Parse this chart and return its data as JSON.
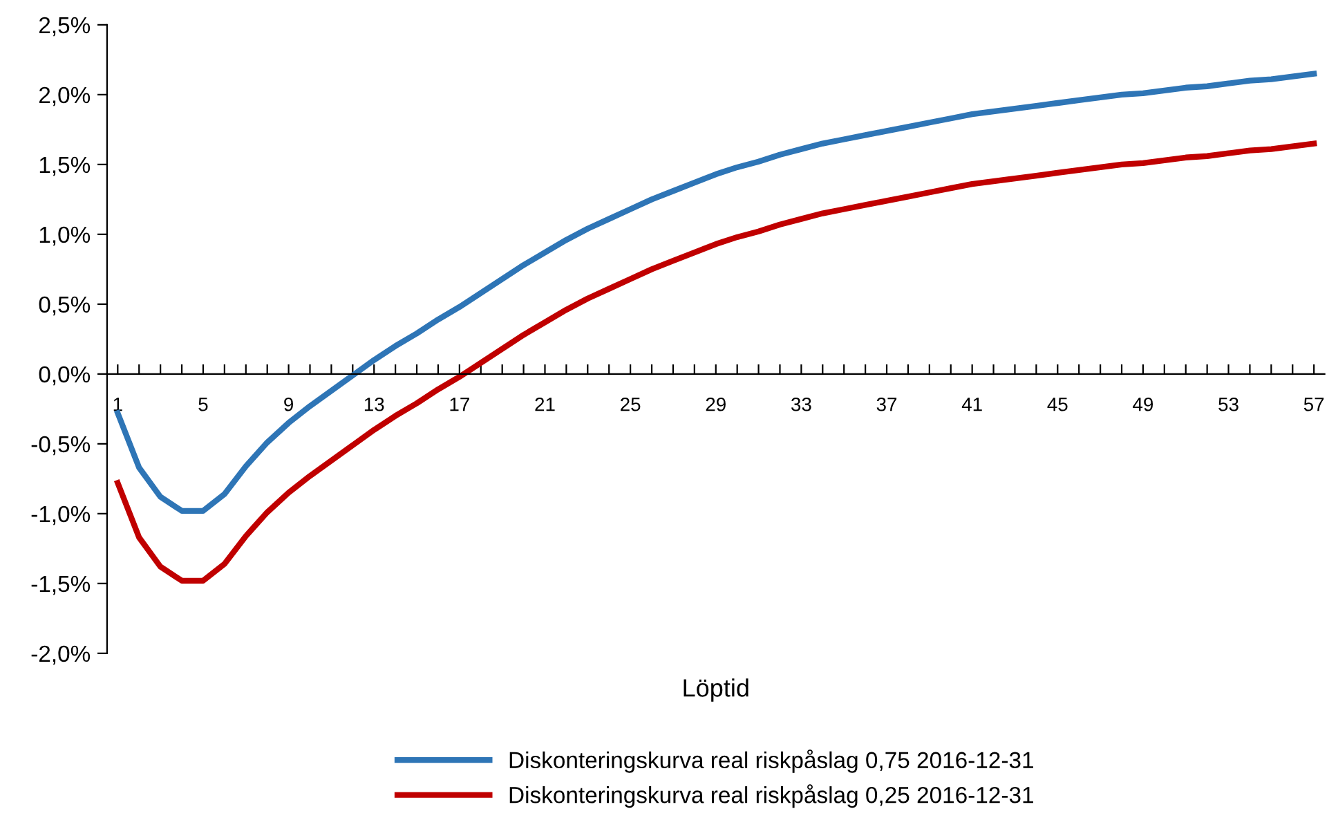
{
  "chart_data": {
    "type": "line",
    "xlabel": "Löptid",
    "categories": [
      "1",
      null,
      null,
      null,
      "5",
      null,
      null,
      null,
      "9",
      null,
      null,
      null,
      "13",
      null,
      null,
      null,
      "17",
      null,
      null,
      null,
      "21",
      null,
      null,
      null,
      "25",
      null,
      null,
      null,
      "29",
      null,
      null,
      null,
      "33",
      null,
      null,
      null,
      "37",
      null,
      null,
      null,
      "41",
      null,
      null,
      null,
      "45",
      null,
      null,
      null,
      "49",
      null,
      null,
      null,
      "53",
      null,
      null,
      null,
      "57"
    ],
    "series": [
      {
        "name": "Diskonteringskurva real riskpåslag 0,75 2016-12-31",
        "color": "#2e75b6",
        "values": [
          -0.28,
          -0.67,
          -0.88,
          -0.98,
          -0.98,
          -0.86,
          -0.66,
          -0.49,
          -0.35,
          -0.23,
          -0.12,
          -0.01,
          0.1,
          0.2,
          0.29,
          0.39,
          0.48,
          0.58,
          0.68,
          0.78,
          0.87,
          0.96,
          1.04,
          1.11,
          1.18,
          1.25,
          1.31,
          1.37,
          1.43,
          1.48,
          1.52,
          1.57,
          1.61,
          1.65,
          1.68,
          1.71,
          1.74,
          1.77,
          1.8,
          1.83,
          1.86,
          1.88,
          1.9,
          1.92,
          1.94,
          1.96,
          1.98,
          2.0,
          2.01,
          2.03,
          2.05,
          2.06,
          2.08,
          2.1,
          2.11,
          2.13,
          2.15
        ]
      },
      {
        "name": "Diskonteringskurva real riskpåslag 0,25 2016-12-31",
        "color": "#c00000",
        "values": [
          -0.78,
          -1.17,
          -1.38,
          -1.48,
          -1.48,
          -1.36,
          -1.16,
          -0.99,
          -0.85,
          -0.73,
          -0.62,
          -0.51,
          -0.4,
          -0.3,
          -0.21,
          -0.11,
          -0.02,
          0.08,
          0.18,
          0.28,
          0.37,
          0.46,
          0.54,
          0.61,
          0.68,
          0.75,
          0.81,
          0.87,
          0.93,
          0.98,
          1.02,
          1.07,
          1.11,
          1.15,
          1.18,
          1.21,
          1.24,
          1.27,
          1.3,
          1.33,
          1.36,
          1.38,
          1.4,
          1.42,
          1.44,
          1.46,
          1.48,
          1.5,
          1.51,
          1.53,
          1.55,
          1.56,
          1.58,
          1.6,
          1.61,
          1.63,
          1.65
        ]
      }
    ],
    "ylim": [
      -2.0,
      2.5
    ],
    "yticks": [
      {
        "value": -2.0,
        "label": "-2,0%"
      },
      {
        "value": -1.5,
        "label": "-1,5%"
      },
      {
        "value": -1.0,
        "label": "-1,0%"
      },
      {
        "value": -0.5,
        "label": "-0,5%"
      },
      {
        "value": 0,
        "label": "0,0%"
      },
      {
        "value": 0.5,
        "label": "0,5%"
      },
      {
        "value": 1.0,
        "label": "1,0%"
      },
      {
        "value": 1.5,
        "label": "1,5%"
      },
      {
        "value": 2.0,
        "label": "2,0%"
      },
      {
        "value": 2.5,
        "label": "2,5%"
      }
    ],
    "grid": false,
    "legend": "bottom",
    "marker": "none",
    "line_style": "solid"
  }
}
